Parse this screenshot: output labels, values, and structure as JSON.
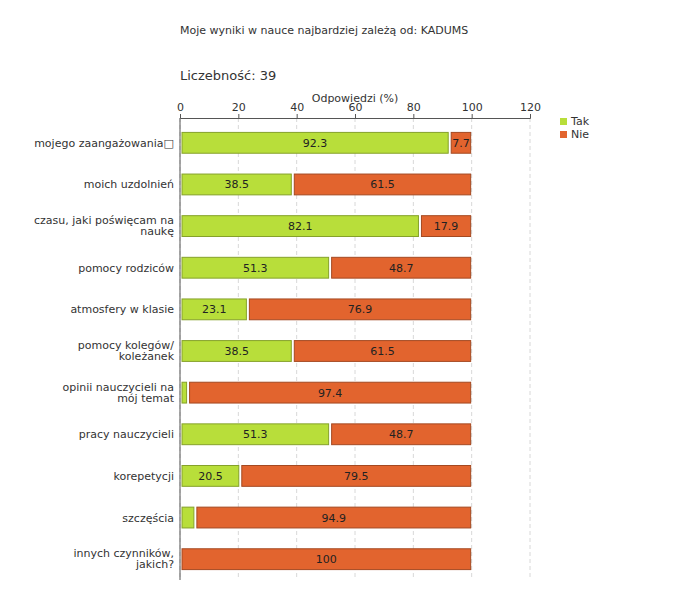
{
  "chart_data": {
    "type": "bar",
    "orientation": "horizontal",
    "stacked": true,
    "title": "Moje wyniki w nauce najbardziej zależą od: KADUMS",
    "subtitle": "Liczebność: 39",
    "x_label": "Odpowiedzi (%)",
    "categories": [
      "mojego zaangażowania□",
      "moich uzdolnień",
      "czasu, jaki poświęcam na naukę",
      "pomocy rodziców",
      "atmosfery w klasie",
      "pomocy kolegów/ koleżanek",
      "opinii nauczycieli na mój temat",
      "pracy nauczycieli",
      "korepetycji",
      "szczęścia",
      "innych czynników, jakich?"
    ],
    "series": [
      {
        "name": "Tak",
        "color": "#b8de3a",
        "values": [
          92.3,
          38.5,
          82.1,
          51.3,
          23.1,
          38.5,
          2.6,
          51.3,
          20.5,
          5.1,
          0
        ]
      },
      {
        "name": "Nie",
        "color": "#e2642e",
        "values": [
          7.7,
          61.5,
          17.9,
          48.7,
          76.9,
          61.5,
          97.4,
          48.7,
          79.5,
          94.9,
          100
        ]
      }
    ],
    "xlim": [
      0,
      120
    ],
    "xticks": [
      0,
      20,
      40,
      60,
      80,
      100,
      120
    ],
    "grid": true,
    "legend": "right",
    "data_labels": true
  }
}
